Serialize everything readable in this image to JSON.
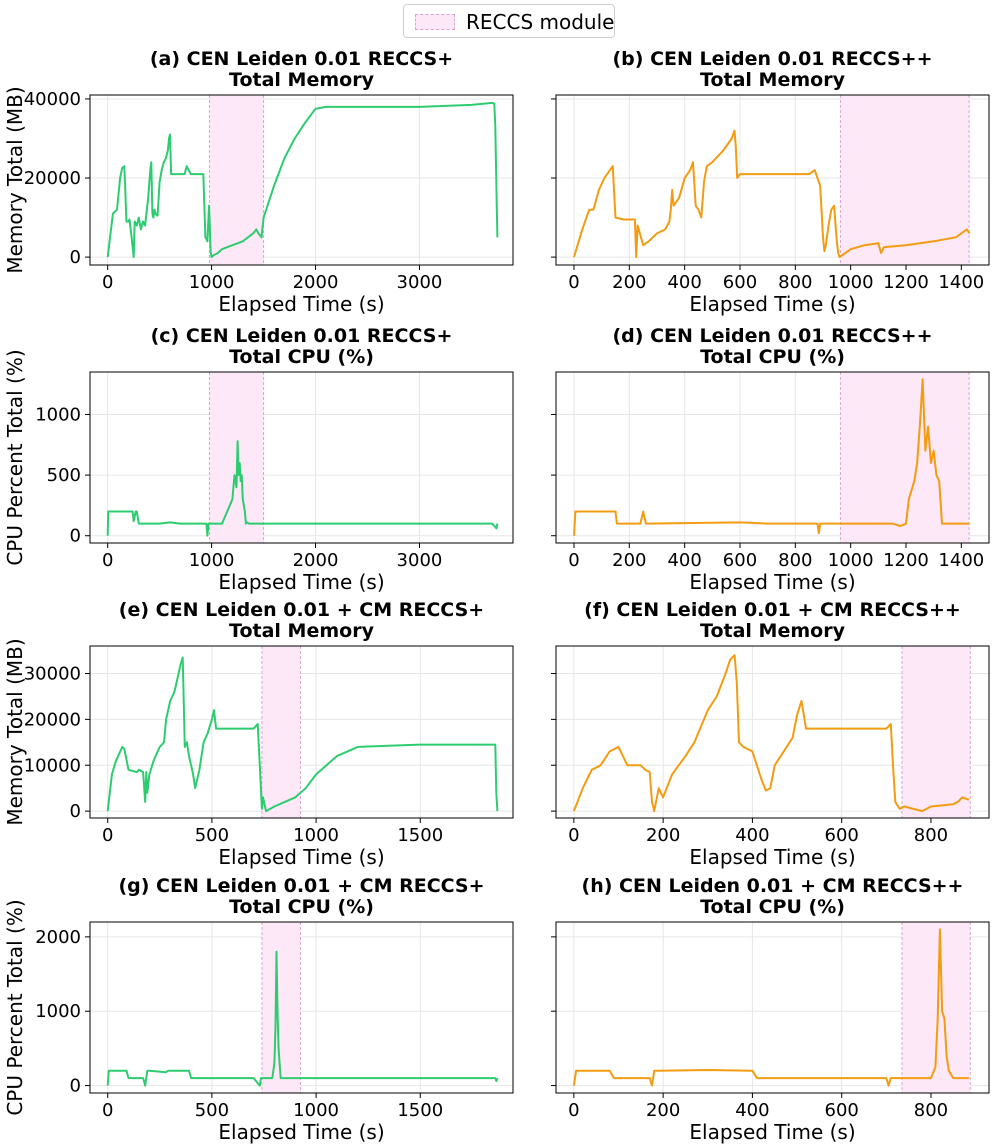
{
  "legend": {
    "label": "RECCS module",
    "color": "#fce8f6",
    "edge": "#d6a6d0"
  },
  "colors": {
    "green": "#2ecc71",
    "orange": "#f39c12",
    "shade": "#fce8f6",
    "shade_edge": "#d6a6d0",
    "grid": "#e6e6e6"
  },
  "chart_data": [
    {
      "id": "a",
      "type": "line",
      "color": "#2ecc71",
      "title": [
        "(a) CEN Leiden 0.01 RECCS+",
        "Total Memory"
      ],
      "xlabel": "Elapsed Time (s)",
      "ylabel": "Memory Total (MB)",
      "xlim": [
        -170,
        3900
      ],
      "ylim": [
        -2000,
        41000
      ],
      "xticks": [
        0,
        1000,
        2000,
        3000
      ],
      "yticks": [
        0,
        20000,
        40000
      ],
      "shade": [
        980,
        1500
      ],
      "grid": true,
      "x": [
        0,
        50,
        90,
        120,
        140,
        160,
        170,
        180,
        200,
        210,
        230,
        250,
        260,
        280,
        300,
        320,
        340,
        360,
        390,
        410,
        420,
        430,
        440,
        450,
        460,
        480,
        500,
        520,
        540,
        560,
        580,
        590,
        600,
        610,
        640,
        700,
        740,
        760,
        800,
        880,
        920,
        940,
        960,
        970,
        975,
        980,
        990,
        1000,
        1020,
        1060,
        1100,
        1150,
        1200,
        1250,
        1300,
        1350,
        1400,
        1430,
        1450,
        1480,
        1500,
        1600,
        1700,
        1800,
        1900,
        2000,
        2100,
        2500,
        3000,
        3500,
        3700,
        3720,
        3730,
        3745,
        3750
      ],
      "y": [
        0,
        11000,
        12000,
        20000,
        22500,
        23000,
        17000,
        9000,
        9000,
        9500,
        5000,
        0,
        9000,
        8000,
        10000,
        7000,
        9000,
        8000,
        15000,
        22000,
        24000,
        11000,
        10000,
        12000,
        11000,
        10500,
        19000,
        22000,
        24000,
        25000,
        27000,
        30000,
        31000,
        21000,
        21000,
        21000,
        21000,
        23000,
        21000,
        21000,
        21000,
        5000,
        4000,
        10000,
        13000,
        10000,
        1500,
        0,
        500,
        1000,
        2000,
        2500,
        3000,
        3500,
        4000,
        5000,
        6000,
        7000,
        6000,
        5000,
        10000,
        18000,
        25000,
        30000,
        34000,
        37500,
        38000,
        38000,
        38000,
        38500,
        39000,
        38800,
        33000,
        11000,
        5000
      ]
    },
    {
      "id": "b",
      "type": "line",
      "color": "#f39c12",
      "title": [
        "(b) CEN Leiden 0.01 RECCS++",
        "Total Memory"
      ],
      "xlabel": "Elapsed Time (s)",
      "ylabel": "",
      "xlim": [
        -65,
        1500
      ],
      "ylim": [
        -2000,
        41000
      ],
      "xticks": [
        0,
        200,
        400,
        600,
        800,
        1000,
        1200,
        1400
      ],
      "yticks": [
        0,
        20000,
        40000
      ],
      "shade": [
        963,
        1428
      ],
      "grid": true,
      "x": [
        0,
        30,
        55,
        70,
        90,
        110,
        130,
        140,
        150,
        180,
        220,
        225,
        230,
        250,
        270,
        300,
        330,
        345,
        350,
        355,
        360,
        380,
        400,
        420,
        430,
        440,
        450,
        460,
        470,
        480,
        500,
        540,
        570,
        580,
        585,
        590,
        600,
        700,
        800,
        850,
        870,
        890,
        900,
        905,
        910,
        920,
        930,
        940,
        950,
        955,
        960,
        1000,
        1050,
        1100,
        1110,
        1120,
        1200,
        1300,
        1380,
        1400,
        1420,
        1430
      ],
      "y": [
        0,
        7000,
        12000,
        12000,
        17000,
        20000,
        22000,
        23000,
        10000,
        9500,
        9500,
        0,
        8000,
        3000,
        4000,
        6000,
        7000,
        9000,
        12000,
        17000,
        13000,
        15000,
        20000,
        22000,
        24000,
        13000,
        12000,
        10000,
        19000,
        23000,
        24000,
        27000,
        30000,
        32000,
        28000,
        20000,
        21000,
        21000,
        21000,
        21000,
        22000,
        18000,
        5000,
        1500,
        3000,
        8000,
        12000,
        13000,
        4000,
        1000,
        0,
        2000,
        3000,
        3500,
        1000,
        2500,
        3000,
        4000,
        5000,
        6000,
        7000,
        6000
      ]
    },
    {
      "id": "c",
      "type": "line",
      "color": "#2ecc71",
      "title": [
        "(c) CEN Leiden 0.01 RECCS+",
        "Total CPU (%)"
      ],
      "xlabel": "Elapsed Time (s)",
      "ylabel": "CPU Percent Total (%)",
      "xlim": [
        -170,
        3900
      ],
      "ylim": [
        -60,
        1350
      ],
      "xticks": [
        0,
        1000,
        2000,
        3000
      ],
      "yticks": [
        0,
        500,
        1000
      ],
      "shade": [
        980,
        1500
      ],
      "grid": true,
      "x": [
        0,
        5,
        240,
        250,
        270,
        280,
        300,
        500,
        600,
        700,
        900,
        950,
        960,
        970,
        1000,
        1100,
        1150,
        1200,
        1220,
        1240,
        1250,
        1260,
        1270,
        1280,
        1290,
        1300,
        1320,
        1330,
        1340,
        1360,
        2000,
        3000,
        3700,
        3740,
        3750
      ],
      "y": [
        0,
        200,
        200,
        120,
        200,
        200,
        100,
        100,
        110,
        100,
        100,
        100,
        0,
        100,
        100,
        100,
        200,
        300,
        500,
        400,
        780,
        500,
        600,
        450,
        500,
        300,
        200,
        100,
        110,
        100,
        100,
        100,
        100,
        60,
        100
      ]
    },
    {
      "id": "d",
      "type": "line",
      "color": "#f39c12",
      "title": [
        "(d) CEN Leiden 0.01 RECCS++",
        "Total CPU (%)"
      ],
      "xlabel": "Elapsed Time (s)",
      "ylabel": "",
      "xlim": [
        -65,
        1500
      ],
      "ylim": [
        -60,
        1350
      ],
      "xticks": [
        0,
        200,
        400,
        600,
        800,
        1000,
        1200,
        1400
      ],
      "yticks": [
        0,
        500,
        1000
      ],
      "shade": [
        963,
        1428
      ],
      "grid": true,
      "x": [
        0,
        5,
        150,
        155,
        240,
        250,
        260,
        600,
        700,
        880,
        885,
        890,
        1000,
        1150,
        1180,
        1200,
        1210,
        1230,
        1240,
        1250,
        1260,
        1270,
        1280,
        1290,
        1300,
        1310,
        1320,
        1330,
        1430
      ],
      "y": [
        0,
        200,
        200,
        100,
        100,
        200,
        100,
        110,
        100,
        100,
        20,
        100,
        100,
        100,
        80,
        100,
        300,
        450,
        600,
        900,
        1290,
        700,
        900,
        600,
        700,
        500,
        450,
        100,
        100
      ]
    },
    {
      "id": "e",
      "type": "line",
      "color": "#2ecc71",
      "title": [
        "(e) CEN Leiden 0.01 + CM RECCS+",
        "Total Memory"
      ],
      "xlabel": "Elapsed Time (s)",
      "ylabel": "Memory Total (MB)",
      "xlim": [
        -85,
        1945
      ],
      "ylim": [
        -1500,
        36000
      ],
      "xticks": [
        0,
        500,
        1000,
        1500
      ],
      "yticks": [
        0,
        10000,
        20000,
        30000
      ],
      "shade": [
        740,
        925
      ],
      "grid": true,
      "x": [
        0,
        20,
        40,
        60,
        70,
        80,
        100,
        140,
        150,
        170,
        180,
        185,
        190,
        200,
        220,
        250,
        270,
        280,
        300,
        320,
        340,
        350,
        360,
        370,
        380,
        390,
        400,
        410,
        420,
        440,
        460,
        480,
        500,
        510,
        520,
        600,
        700,
        720,
        730,
        740,
        745,
        760,
        800,
        850,
        900,
        950,
        1000,
        1100,
        1200,
        1500,
        1800,
        1860,
        1865,
        1870
      ],
      "y": [
        0,
        8000,
        11000,
        13000,
        14000,
        13500,
        9000,
        8500,
        9000,
        8500,
        2000,
        8500,
        4000,
        8000,
        11000,
        14000,
        15000,
        20000,
        24000,
        26000,
        30000,
        32000,
        33500,
        14000,
        15000,
        12000,
        10000,
        8000,
        5000,
        9000,
        15000,
        17000,
        20000,
        22000,
        18000,
        18000,
        18000,
        19000,
        10000,
        500,
        3000,
        0,
        1000,
        2000,
        3000,
        5000,
        8000,
        12000,
        14000,
        14500,
        14500,
        14500,
        4000,
        0
      ]
    },
    {
      "id": "f",
      "type": "line",
      "color": "#f39c12",
      "title": [
        "(f) CEN Leiden 0.01 + CM RECCS++",
        "Total Memory"
      ],
      "xlabel": "Elapsed Time (s)",
      "ylabel": "",
      "xlim": [
        -40,
        930
      ],
      "ylim": [
        -1500,
        36000
      ],
      "xticks": [
        0,
        200,
        400,
        600,
        800
      ],
      "yticks": [
        0,
        10000,
        20000,
        30000
      ],
      "shade": [
        735,
        888
      ],
      "grid": true,
      "x": [
        0,
        20,
        40,
        60,
        80,
        100,
        120,
        150,
        160,
        170,
        175,
        180,
        190,
        200,
        220,
        250,
        270,
        300,
        320,
        340,
        350,
        360,
        365,
        370,
        380,
        400,
        420,
        430,
        440,
        450,
        470,
        490,
        500,
        510,
        520,
        600,
        700,
        710,
        715,
        720,
        730,
        740,
        780,
        800,
        850,
        860,
        870,
        885
      ],
      "y": [
        0,
        5000,
        9000,
        10000,
        13000,
        14000,
        10000,
        10000,
        9000,
        8500,
        2000,
        0,
        5000,
        3000,
        8000,
        12000,
        15000,
        22000,
        25000,
        30000,
        33000,
        34000,
        28000,
        15000,
        14000,
        13000,
        7000,
        4500,
        5000,
        10000,
        13000,
        16000,
        21000,
        24000,
        18000,
        18000,
        18000,
        19000,
        10000,
        2000,
        500,
        1000,
        0,
        1000,
        1500,
        2000,
        3000,
        2500
      ]
    },
    {
      "id": "g",
      "type": "line",
      "color": "#2ecc71",
      "title": [
        "(g) CEN Leiden 0.01 + CM RECCS+",
        "Total CPU (%)"
      ],
      "xlabel": "Elapsed Time (s)",
      "ylabel": "CPU Percent Total (%)",
      "xlim": [
        -85,
        1945
      ],
      "ylim": [
        -100,
        2200
      ],
      "xticks": [
        0,
        500,
        1000,
        1500
      ],
      "yticks": [
        0,
        1000,
        2000
      ],
      "shade": [
        740,
        925
      ],
      "grid": true,
      "x": [
        0,
        5,
        90,
        100,
        170,
        180,
        190,
        200,
        280,
        290,
        390,
        400,
        410,
        700,
        730,
        735,
        740,
        790,
        800,
        805,
        810,
        815,
        820,
        825,
        830,
        840,
        850,
        1000,
        1500,
        1860,
        1865,
        1870
      ],
      "y": [
        0,
        200,
        200,
        100,
        100,
        0,
        200,
        200,
        180,
        200,
        200,
        100,
        100,
        100,
        0,
        100,
        100,
        100,
        300,
        800,
        1800,
        1000,
        500,
        300,
        100,
        100,
        100,
        100,
        100,
        100,
        60,
        100
      ]
    },
    {
      "id": "h",
      "type": "line",
      "color": "#f39c12",
      "title": [
        "(h) CEN Leiden 0.01 + CM RECCS++",
        "Total CPU (%)"
      ],
      "xlabel": "Elapsed Time (s)",
      "ylabel": "",
      "xlim": [
        -40,
        930
      ],
      "ylim": [
        -100,
        2200
      ],
      "xticks": [
        0,
        200,
        400,
        600,
        800
      ],
      "yticks": [],
      "shade": [
        735,
        888
      ],
      "grid": true,
      "x": [
        0,
        5,
        80,
        90,
        170,
        175,
        180,
        190,
        300,
        400,
        410,
        700,
        705,
        710,
        800,
        810,
        815,
        820,
        825,
        830,
        835,
        840,
        850,
        885
      ],
      "y": [
        0,
        200,
        200,
        100,
        100,
        0,
        200,
        200,
        210,
        200,
        100,
        100,
        0,
        100,
        100,
        250,
        900,
        2100,
        1000,
        900,
        400,
        200,
        100,
        100
      ]
    }
  ]
}
